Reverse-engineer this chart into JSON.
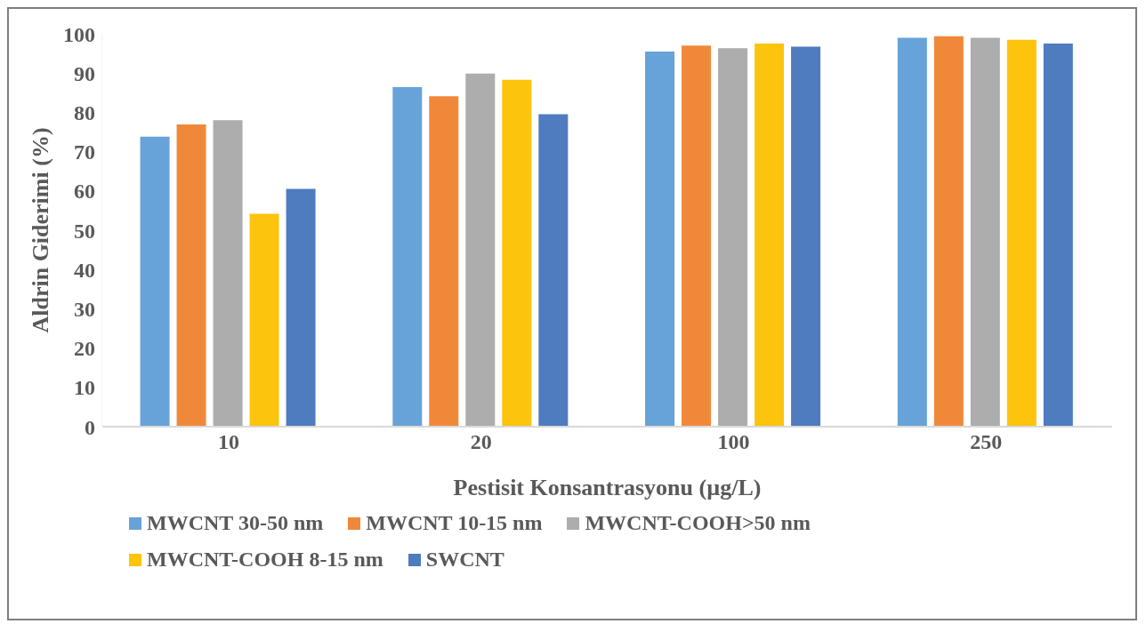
{
  "chart_data": {
    "type": "bar",
    "xlabel": "Pestisit Konsantrasyonu (µg/L)",
    "ylabel": "Aldrin Giderimi (%)",
    "categories": [
      "10",
      "20",
      "100",
      "250"
    ],
    "series": [
      {
        "name": "MWCNT 30-50 nm",
        "color": "#67a3d8",
        "values": [
          73.8,
          86.4,
          95.5,
          99.0
        ]
      },
      {
        "name": "MWCNT 10-15 nm",
        "color": "#f0883a",
        "values": [
          76.9,
          84.1,
          97.0,
          99.4
        ]
      },
      {
        "name": "MWCNT-COOH>50 nm",
        "color": "#adadad",
        "values": [
          78.0,
          89.9,
          96.3,
          99.0
        ]
      },
      {
        "name": "MWCNT-COOH 8-15 nm",
        "color": "#fdc40e",
        "values": [
          54.2,
          88.3,
          97.5,
          98.5
        ]
      },
      {
        "name": "SWCNT",
        "color": "#4f7bbf",
        "values": [
          60.5,
          79.5,
          96.7,
          97.5
        ]
      }
    ],
    "ylim": [
      0,
      100
    ],
    "yticks": [
      0,
      10,
      20,
      30,
      40,
      50,
      60,
      70,
      80,
      90,
      100
    ],
    "grid": false,
    "legend": "bottom"
  }
}
